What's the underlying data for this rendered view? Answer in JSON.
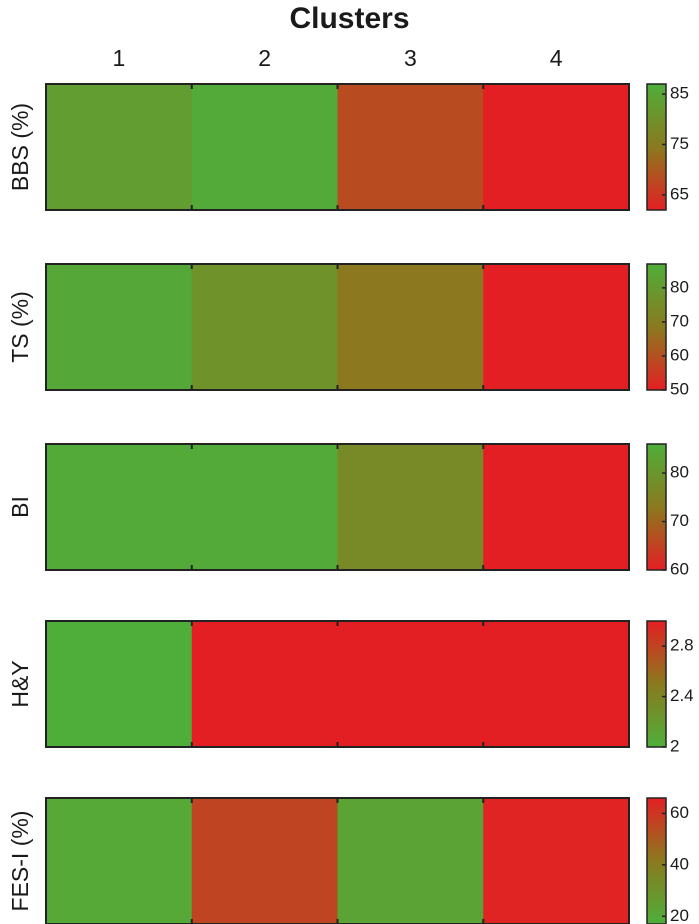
{
  "chart_data": {
    "type": "heatmap",
    "title": "Clusters",
    "columns": [
      "1",
      "2",
      "3",
      "4"
    ],
    "colormap": {
      "low": "#e41f23",
      "mid": "#8a7a1e",
      "high": "#4fae3a"
    },
    "panels": [
      {
        "label": "BBS (%)",
        "values": [
          83,
          86,
          68,
          62
        ],
        "colorbar": {
          "range": [
            62,
            87
          ],
          "ticks": [
            "85",
            "75",
            "65"
          ],
          "tick_values": [
            85,
            75,
            65
          ],
          "reversed": false
        }
      },
      {
        "label": "TS (%)",
        "values": [
          85,
          77,
          68,
          50
        ],
        "colorbar": {
          "range": [
            50,
            87
          ],
          "ticks": [
            "80",
            "70",
            "60",
            "50"
          ],
          "tick_values": [
            80,
            70,
            60,
            50
          ],
          "reversed": false
        }
      },
      {
        "label": "BI",
        "values": [
          85,
          85,
          77,
          60
        ],
        "colorbar": {
          "range": [
            60,
            86
          ],
          "ticks": [
            "80",
            "70",
            "60"
          ],
          "tick_values": [
            80,
            70,
            60
          ],
          "reversed": false
        }
      },
      {
        "label": "H&Y",
        "values": [
          2.0,
          3.0,
          3.0,
          3.0
        ],
        "colorbar": {
          "range": [
            2,
            3
          ],
          "ticks": [
            "2.8",
            "2.4",
            "2"
          ],
          "tick_values": [
            2.8,
            2.4,
            2
          ],
          "reversed": true
        }
      },
      {
        "label": "FES-I (%)",
        "values": [
          20,
          56,
          22,
          65
        ],
        "colorbar": {
          "range": [
            17,
            66
          ],
          "ticks": [
            "60",
            "40",
            "20"
          ],
          "tick_values": [
            60,
            40,
            20
          ],
          "reversed": true
        }
      }
    ]
  }
}
